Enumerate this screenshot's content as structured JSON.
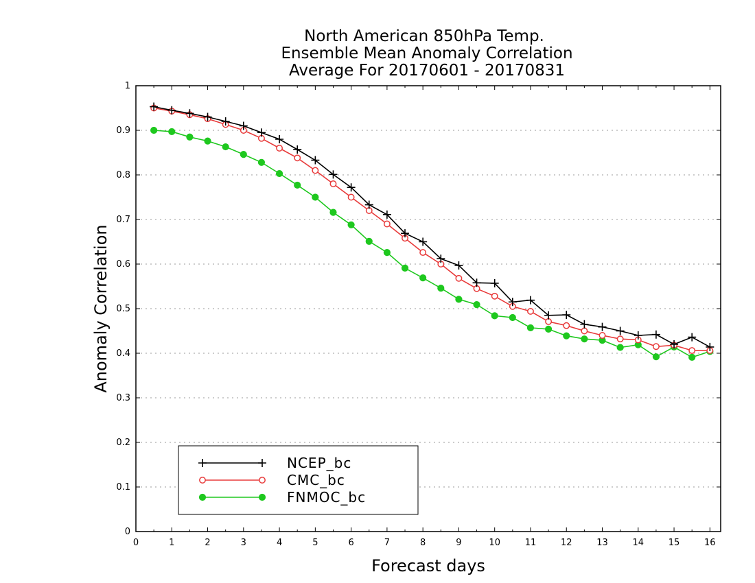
{
  "chart_data": {
    "type": "line",
    "title": [
      "North American 850hPa Temp.",
      "Ensemble Mean Anomaly Correlation",
      "Average For 20170601 - 20170831"
    ],
    "xlabel": "Forecast days",
    "ylabel": "Anomaly Correlation",
    "xlim": [
      0,
      16.3
    ],
    "ylim": [
      0,
      1
    ],
    "xticks": [
      "0",
      "1",
      "2",
      "3",
      "4",
      "5",
      "6",
      "7",
      "8",
      "9",
      "10",
      "11",
      "12",
      "13",
      "14",
      "15",
      "16"
    ],
    "yticks": [
      "0",
      "0.1",
      "0.2",
      "0.3",
      "0.4",
      "0.5",
      "0.6",
      "0.7",
      "0.8",
      "0.9",
      "1"
    ],
    "grid": "horizontal dotted",
    "legend_position": "bottom-left",
    "x": [
      0.5,
      1,
      1.5,
      2,
      2.5,
      3,
      3.5,
      4,
      4.5,
      5,
      5.5,
      6,
      6.5,
      7,
      7.5,
      8,
      8.5,
      9,
      9.5,
      10,
      10.5,
      11,
      11.5,
      12,
      12.5,
      13,
      13.5,
      14,
      14.5,
      15,
      15.5,
      16
    ],
    "series": [
      {
        "name": "NCEP_bc",
        "color": "#000000",
        "marker": "plus",
        "values": [
          0.953,
          0.945,
          0.938,
          0.93,
          0.92,
          0.91,
          0.895,
          0.88,
          0.857,
          0.833,
          0.801,
          0.772,
          0.733,
          0.711,
          0.669,
          0.65,
          0.612,
          0.597,
          0.558,
          0.557,
          0.515,
          0.519,
          0.485,
          0.486,
          0.465,
          0.459,
          0.45,
          0.44,
          0.442,
          0.42,
          0.436,
          0.414
        ]
      },
      {
        "name": "CMC_bc",
        "color": "#e83a3a",
        "marker": "open-circle",
        "values": [
          0.95,
          0.943,
          0.935,
          0.926,
          0.913,
          0.9,
          0.882,
          0.86,
          0.838,
          0.81,
          0.78,
          0.75,
          0.72,
          0.69,
          0.658,
          0.626,
          0.6,
          0.568,
          0.545,
          0.528,
          0.505,
          0.494,
          0.471,
          0.462,
          0.45,
          0.44,
          0.432,
          0.43,
          0.415,
          0.418,
          0.406,
          0.406
        ]
      },
      {
        "name": "FNMOC_bc",
        "color": "#1ec81e",
        "marker": "filled-circle",
        "values": [
          0.9,
          0.897,
          0.885,
          0.876,
          0.863,
          0.846,
          0.828,
          0.803,
          0.777,
          0.75,
          0.716,
          0.688,
          0.651,
          0.626,
          0.591,
          0.569,
          0.546,
          0.521,
          0.509,
          0.484,
          0.48,
          0.457,
          0.454,
          0.439,
          0.432,
          0.429,
          0.413,
          0.419,
          0.392,
          0.414,
          0.391,
          0.404
        ]
      }
    ]
  }
}
